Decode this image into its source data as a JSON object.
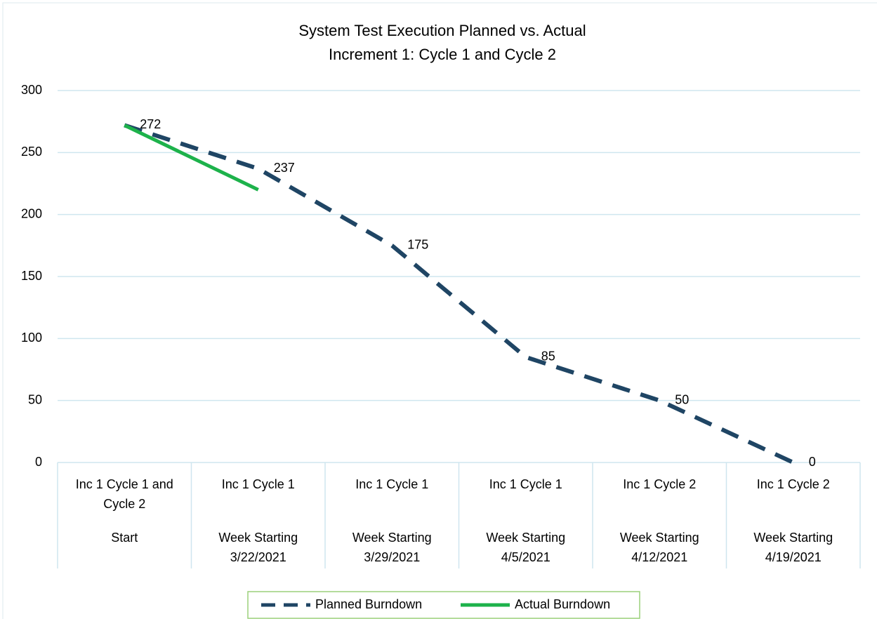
{
  "chart_data": {
    "type": "line",
    "title": [
      "System Test Execution Planned vs. Actual",
      "Increment 1: Cycle 1 and Cycle 2"
    ],
    "categories": [
      [
        "Inc 1 Cycle 1 and Cycle 2",
        "Start"
      ],
      [
        "Inc 1 Cycle 1",
        "Week Starting 3/22/2021"
      ],
      [
        "Inc 1 Cycle 1",
        "Week Starting 3/29/2021"
      ],
      [
        "Inc 1 Cycle 1",
        "Week Starting 4/5/2021"
      ],
      [
        "Inc 1 Cycle 2",
        "Week Starting 4/12/2021"
      ],
      [
        "Inc 1 Cycle 2",
        "Week Starting 4/19/2021"
      ]
    ],
    "series": [
      {
        "name": "Planned Burndown",
        "color": "#1f4564",
        "dashed": true,
        "data_labels": true,
        "values": [
          272,
          237,
          175,
          85,
          50,
          0
        ]
      },
      {
        "name": "Actual Burndown",
        "color": "#1db24b",
        "dashed": false,
        "data_labels": false,
        "values": [
          272,
          220,
          null,
          null,
          null,
          null
        ]
      }
    ],
    "ylim": [
      0,
      300
    ],
    "yticks": [
      0,
      50,
      100,
      150,
      200,
      250,
      300
    ],
    "grid": true,
    "legend": "bottom"
  }
}
